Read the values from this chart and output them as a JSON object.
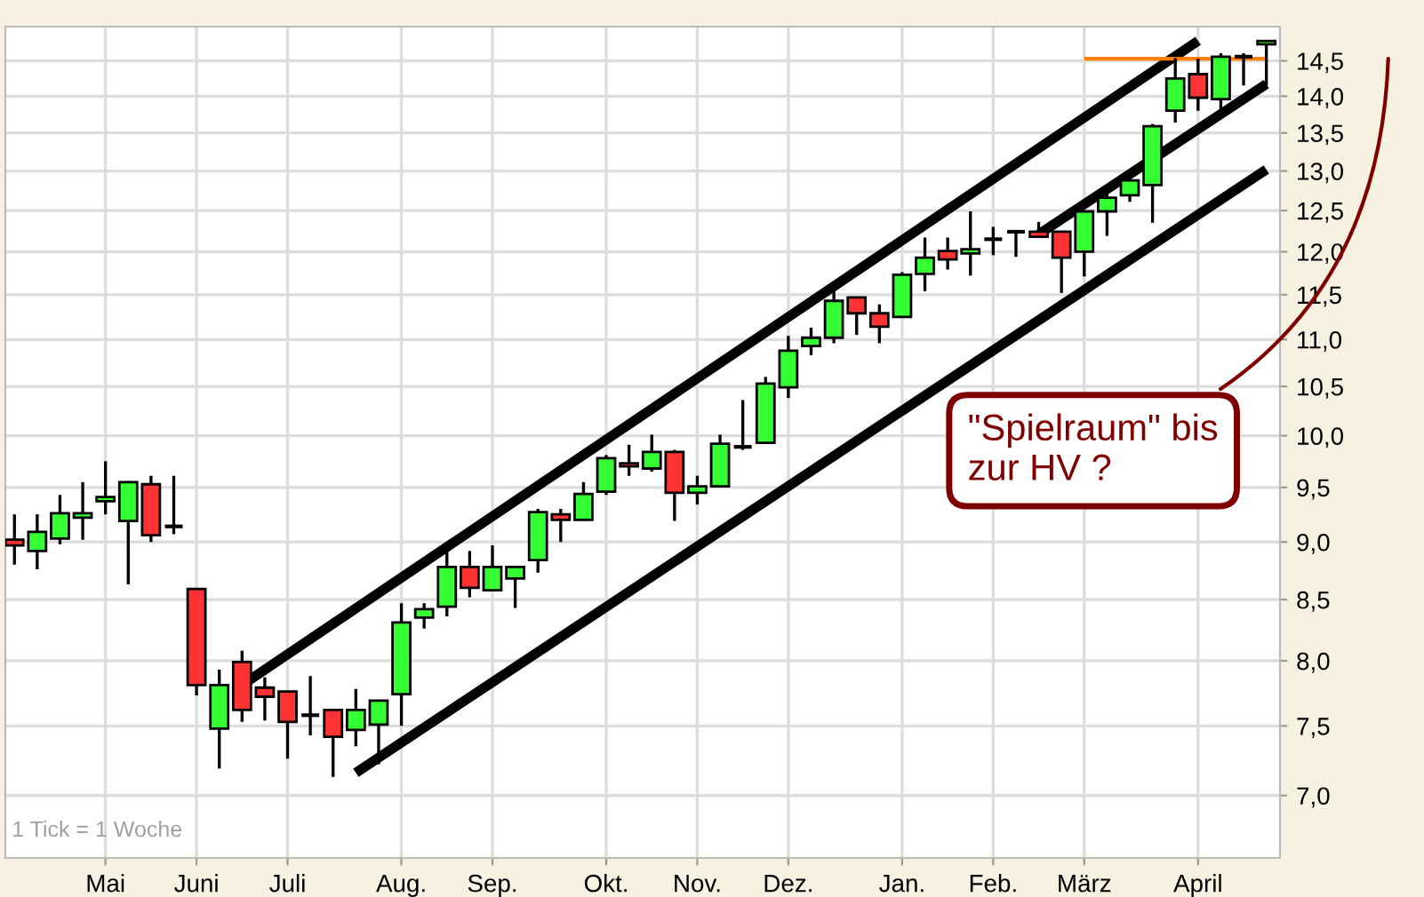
{
  "chart_data": {
    "type": "candlestick",
    "categories": [
      null,
      null,
      null,
      null,
      "Mai",
      null,
      null,
      null,
      "Juni",
      null,
      null,
      null,
      "Juli",
      null,
      null,
      null,
      null,
      "Aug.",
      null,
      null,
      null,
      "Sep.",
      null,
      null,
      null,
      null,
      "Okt.",
      null,
      null,
      null,
      "Nov.",
      null,
      null,
      null,
      "Dez.",
      null,
      null,
      null,
      null,
      "Jan.",
      null,
      null,
      null,
      "Feb.",
      null,
      null,
      null,
      "März",
      null,
      null,
      null,
      null,
      "April",
      null,
      null,
      null
    ],
    "ohlc": [
      [
        9.02,
        9.25,
        8.8,
        8.97
      ],
      [
        8.92,
        9.25,
        8.76,
        9.09
      ],
      [
        9.03,
        9.43,
        8.98,
        9.26
      ],
      [
        9.22,
        9.55,
        9.02,
        9.26
      ],
      [
        9.37,
        9.75,
        9.25,
        9.41
      ],
      [
        9.19,
        9.56,
        8.63,
        9.55
      ],
      [
        9.53,
        9.61,
        9.0,
        9.06
      ],
      [
        9.14,
        9.61,
        9.07,
        9.14
      ],
      [
        8.59,
        8.59,
        7.73,
        7.81
      ],
      [
        7.48,
        7.93,
        7.19,
        7.81
      ],
      [
        7.99,
        8.08,
        7.53,
        7.62
      ],
      [
        7.79,
        7.87,
        7.54,
        7.72
      ],
      [
        7.76,
        7.76,
        7.26,
        7.53
      ],
      [
        7.58,
        7.88,
        7.43,
        7.58
      ],
      [
        7.62,
        7.62,
        7.13,
        7.42
      ],
      [
        7.47,
        7.78,
        7.35,
        7.62
      ],
      [
        7.51,
        7.69,
        7.22,
        7.69
      ],
      [
        7.74,
        8.47,
        7.5,
        8.31
      ],
      [
        8.35,
        8.47,
        8.26,
        8.42
      ],
      [
        8.44,
        8.92,
        8.36,
        8.78
      ],
      [
        8.78,
        8.92,
        8.52,
        8.6
      ],
      [
        8.58,
        8.97,
        8.58,
        8.78
      ],
      [
        8.68,
        8.78,
        8.43,
        8.78
      ],
      [
        8.84,
        9.3,
        8.73,
        9.27
      ],
      [
        9.25,
        9.3,
        9.0,
        9.2
      ],
      [
        9.2,
        9.55,
        9.2,
        9.44
      ],
      [
        9.46,
        9.81,
        9.43,
        9.78
      ],
      [
        9.73,
        9.91,
        9.61,
        9.7
      ],
      [
        9.68,
        10.01,
        9.65,
        9.84
      ],
      [
        9.84,
        9.86,
        9.19,
        9.45
      ],
      [
        9.45,
        9.61,
        9.34,
        9.51
      ],
      [
        9.51,
        10.01,
        9.51,
        9.92
      ],
      [
        9.89,
        10.36,
        9.86,
        9.89
      ],
      [
        9.93,
        10.6,
        9.93,
        10.53
      ],
      [
        10.49,
        11.04,
        10.38,
        10.88
      ],
      [
        10.93,
        11.13,
        10.83,
        11.02
      ],
      [
        11.02,
        11.55,
        10.96,
        11.43
      ],
      [
        11.47,
        11.47,
        11.05,
        11.29
      ],
      [
        11.29,
        11.39,
        10.96,
        11.14
      ],
      [
        11.25,
        11.76,
        11.25,
        11.73
      ],
      [
        11.74,
        12.17,
        11.54,
        11.93
      ],
      [
        12.01,
        12.17,
        11.79,
        11.91
      ],
      [
        11.98,
        12.49,
        11.72,
        12.03
      ],
      [
        12.15,
        12.3,
        11.96,
        12.15
      ],
      [
        12.24,
        12.24,
        11.94,
        12.24
      ],
      [
        12.24,
        12.36,
        12.18,
        12.18
      ],
      [
        12.24,
        12.24,
        11.52,
        11.93
      ],
      [
        12.0,
        12.49,
        11.71,
        12.49
      ],
      [
        12.49,
        12.73,
        12.19,
        12.66
      ],
      [
        12.69,
        12.96,
        12.61,
        12.88
      ],
      [
        12.82,
        13.62,
        12.35,
        13.59
      ],
      [
        13.8,
        14.54,
        13.64,
        14.25
      ],
      [
        14.31,
        14.53,
        13.8,
        13.98
      ],
      [
        13.96,
        14.61,
        13.78,
        14.56
      ],
      [
        14.56,
        14.61,
        14.15,
        14.56
      ],
      [
        14.74,
        14.79,
        14.15,
        14.79
      ]
    ],
    "colors": [
      "#ff3333",
      "#33ff33",
      "#33ff33",
      "#33ff33",
      "#33ff33",
      "#33ff33",
      "#ff3333",
      "#000000",
      "#ff3333",
      "#33ff33",
      "#ff3333",
      "#ff3333",
      "#ff3333",
      "#000000",
      "#ff3333",
      "#33ff33",
      "#33ff33",
      "#33ff33",
      "#33ff33",
      "#33ff33",
      "#ff3333",
      "#33ff33",
      "#33ff33",
      "#33ff33",
      "#ff3333",
      "#33ff33",
      "#33ff33",
      "#ff3333",
      "#33ff33",
      "#ff3333",
      "#33ff33",
      "#33ff33",
      "#000000",
      "#33ff33",
      "#33ff33",
      "#33ff33",
      "#33ff33",
      "#ff3333",
      "#ff3333",
      "#33ff33",
      "#33ff33",
      "#ff3333",
      "#33ff33",
      "#000000",
      "#000000",
      "#ff3333",
      "#ff3333",
      "#33ff33",
      "#33ff33",
      "#33ff33",
      "#33ff33",
      "#33ff33",
      "#ff3333",
      "#33ff33",
      "#000000",
      "#33ff33"
    ],
    "series": [
      {
        "type": "line",
        "color": "#000000",
        "values": [
          null,
          null,
          null,
          null,
          null,
          null,
          null,
          null,
          null,
          null,
          7.81,
          null,
          null,
          null,
          null,
          null,
          null,
          null,
          null,
          null,
          null,
          null,
          null,
          null,
          null,
          null,
          null,
          null,
          null,
          null,
          null,
          null,
          null,
          null,
          null,
          null,
          null,
          null,
          null,
          null,
          null,
          null,
          null,
          null,
          null,
          null,
          null,
          null,
          null,
          null,
          null,
          null,
          14.79,
          null,
          null,
          null
        ]
      },
      {
        "type": "line",
        "color": "#000000",
        "values": [
          null,
          null,
          null,
          null,
          null,
          null,
          null,
          null,
          null,
          null,
          null,
          null,
          null,
          null,
          null,
          7.16,
          null,
          null,
          null,
          null,
          null,
          null,
          null,
          null,
          null,
          null,
          null,
          null,
          null,
          null,
          null,
          null,
          null,
          null,
          null,
          null,
          null,
          null,
          null,
          null,
          null,
          null,
          null,
          null,
          null,
          null,
          null,
          null,
          null,
          null,
          null,
          null,
          null,
          null,
          null,
          13.02
        ]
      },
      {
        "type": "line",
        "color": "#000000",
        "values": [
          null,
          null,
          null,
          null,
          null,
          null,
          null,
          null,
          null,
          null,
          null,
          null,
          null,
          null,
          null,
          null,
          null,
          null,
          null,
          null,
          null,
          null,
          null,
          null,
          null,
          null,
          null,
          null,
          null,
          null,
          null,
          null,
          null,
          null,
          null,
          null,
          null,
          null,
          null,
          null,
          null,
          null,
          null,
          null,
          null,
          12.21,
          null,
          null,
          null,
          null,
          null,
          null,
          null,
          null,
          null,
          14.17
        ]
      },
      {
        "type": "line",
        "color": "#ff8000",
        "values": [
          null,
          null,
          null,
          null,
          null,
          null,
          null,
          null,
          null,
          null,
          null,
          null,
          null,
          null,
          null,
          null,
          null,
          null,
          null,
          null,
          null,
          null,
          null,
          null,
          null,
          null,
          null,
          null,
          null,
          null,
          null,
          null,
          null,
          null,
          null,
          null,
          null,
          null,
          null,
          null,
          null,
          null,
          null,
          null,
          null,
          null,
          null,
          14.53,
          null,
          null,
          null,
          null,
          null,
          null,
          null,
          14.53
        ]
      }
    ],
    "log": true,
    "grid": true,
    "ylim": [
      6.58,
      15.0
    ],
    "yticks": [
      {
        "value": 7,
        "label": "7,0"
      },
      {
        "value": 7.5,
        "label": "7,5"
      },
      {
        "value": 8,
        "label": "8,0"
      },
      {
        "value": 8.5,
        "label": "8,5"
      },
      {
        "value": 9,
        "label": "9,0"
      },
      {
        "value": 9.5,
        "label": "9,5"
      },
      {
        "value": 10,
        "label": "10,0"
      },
      {
        "value": 10.5,
        "label": "10,5"
      },
      {
        "value": 11,
        "label": "11,0"
      },
      {
        "value": 11.5,
        "label": "11,5"
      },
      {
        "value": 12,
        "label": "12,0"
      },
      {
        "value": 12.5,
        "label": "12,5"
      },
      {
        "value": 13,
        "label": "13,0"
      },
      {
        "value": 13.5,
        "label": "13,5"
      },
      {
        "value": 14,
        "label": "14,0"
      },
      {
        "value": 14.5,
        "label": "14,5"
      }
    ],
    "annotations": [
      "1 Tick = 1 Woche",
      "\"Spielraum\" bis\nzur HV ?"
    ]
  }
}
